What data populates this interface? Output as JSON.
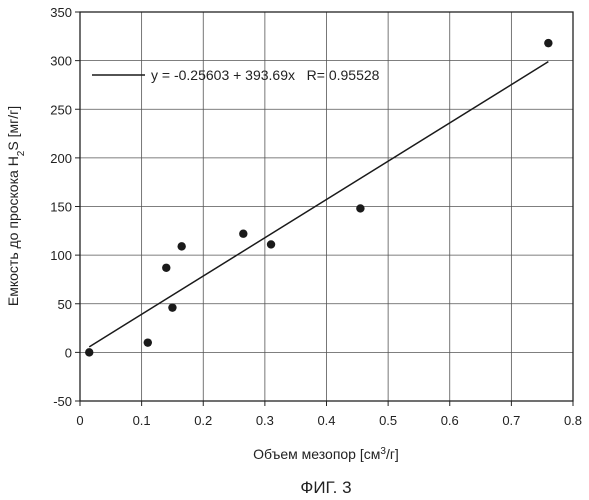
{
  "chart_data": {
    "type": "scatter",
    "xlabel": {
      "prefix": "Объем мезопор [см",
      "sup": "3",
      "suffix": "/г]"
    },
    "ylabel": {
      "prefix": "Емкость до проскока H",
      "sub": "2",
      "suffix": "S [мг/г]"
    },
    "xlim": [
      0,
      0.8
    ],
    "ylim": [
      -50,
      350
    ],
    "xticks": [
      0,
      0.1,
      0.2,
      0.3,
      0.4,
      0.5,
      0.6,
      0.7,
      0.8
    ],
    "xtick_labels": [
      "0",
      "0.1",
      "0.2",
      "0.3",
      "0.4",
      "0.5",
      "0.6",
      "0.7",
      "0.8"
    ],
    "yticks": [
      -50,
      0,
      50,
      100,
      150,
      200,
      250,
      300,
      350
    ],
    "ytick_labels": [
      "-50",
      "0",
      "50",
      "100",
      "150",
      "200",
      "250",
      "300",
      "350"
    ],
    "grid": true,
    "legend_position": "top-left",
    "series": [
      {
        "type": "scatter",
        "color": "#1a1a1a",
        "x": [
          0.015,
          0.11,
          0.14,
          0.15,
          0.165,
          0.265,
          0.31,
          0.455,
          0.76
        ],
        "y": [
          0,
          10,
          87,
          46,
          109,
          122,
          111,
          148,
          318
        ]
      },
      {
        "type": "line",
        "name": "y = -0.25603 + 393.69x   R= 0.95528",
        "color": "#1a1a1a",
        "x": [
          0.015,
          0.76
        ],
        "y": [
          5.65,
          298.95
        ]
      }
    ]
  },
  "caption": "ФИГ. 3"
}
